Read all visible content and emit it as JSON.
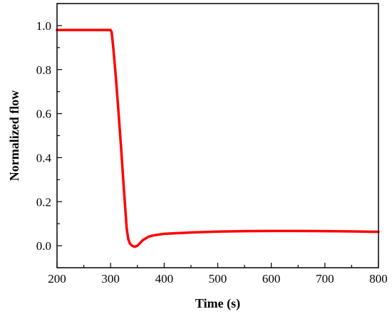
{
  "chart_data": {
    "type": "line",
    "xlabel": "Time (s)",
    "ylabel": "Normalized flow",
    "xlim": [
      200,
      800
    ],
    "ylim": [
      -0.1,
      1.1
    ],
    "xticks": [
      200,
      300,
      400,
      500,
      600,
      700,
      800
    ],
    "yticks": [
      0.0,
      0.2,
      0.4,
      0.6,
      0.8,
      1.0
    ],
    "x_tick_labels": [
      "200",
      "300",
      "400",
      "500",
      "600",
      "700",
      "800"
    ],
    "y_tick_labels": [
      "0.0",
      "0.2",
      "0.4",
      "0.6",
      "0.8",
      "1.0"
    ],
    "grid": false,
    "line_color": "#ff0000",
    "series": [
      {
        "x": [
          200,
          300,
          302,
          305,
          310,
          315,
          320,
          325,
          330,
          333,
          336,
          340,
          345,
          350,
          355,
          360,
          370,
          380,
          400,
          450,
          500,
          550,
          600,
          650,
          700,
          750,
          800
        ],
        "y": [
          0.98,
          0.98,
          0.97,
          0.9,
          0.76,
          0.6,
          0.43,
          0.25,
          0.08,
          0.03,
          0.01,
          0.0,
          -0.005,
          0.0,
          0.012,
          0.025,
          0.04,
          0.047,
          0.054,
          0.06,
          0.064,
          0.066,
          0.067,
          0.067,
          0.066,
          0.065,
          0.063
        ]
      }
    ]
  }
}
